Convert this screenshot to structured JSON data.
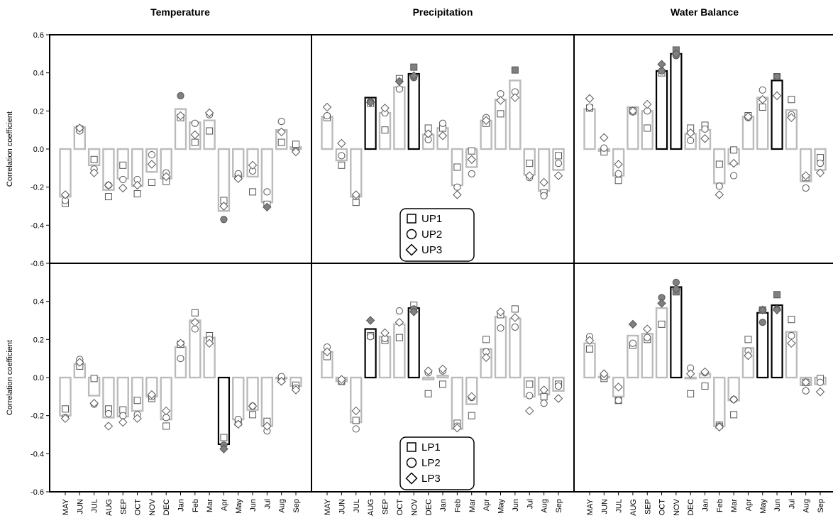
{
  "chart_data": {
    "type": "bar",
    "column_titles": [
      "Temperature",
      "Precipitation",
      "Water Balance"
    ],
    "ylabel": "Correlation coefficient",
    "ylim": [
      -0.6,
      0.6
    ],
    "yticks": [
      "0.6",
      "0.4",
      "0.2",
      "0.0",
      "-0.2",
      "-0.4",
      "-0.6"
    ],
    "categories": [
      "MAY",
      "JUN",
      "JUL",
      "AUG",
      "SEP",
      "OCT",
      "NOV",
      "DEC",
      "Jan",
      "Feb",
      "Mar",
      "Apr",
      "May",
      "Jun",
      "Jul",
      "Aug",
      "Sep"
    ],
    "legends": [
      [
        "UP1",
        "UP2",
        "UP3"
      ],
      [
        "LP1",
        "LP2",
        "LP3"
      ]
    ],
    "colors": {
      "bar_normal": "#bbbbbb",
      "bar_significant": "#000000",
      "marker_significant": "#808080"
    },
    "panels": [
      {
        "row": 0,
        "col": 0,
        "bars": [
          -0.25,
          0.115,
          -0.085,
          -0.215,
          -0.155,
          -0.195,
          -0.12,
          -0.155,
          0.21,
          0.14,
          0.15,
          -0.325,
          -0.145,
          -0.145,
          -0.28,
          0.1,
          0.01
        ],
        "s1": [
          -0.285,
          0.105,
          -0.055,
          -0.25,
          -0.085,
          -0.235,
          -0.175,
          -0.17,
          0.165,
          0.035,
          0.095,
          -0.27,
          -0.145,
          -0.225,
          -0.29,
          0.035,
          0.025
        ],
        "s2": [
          -0.27,
          0.095,
          -0.105,
          -0.19,
          -0.16,
          -0.16,
          -0.03,
          -0.125,
          0.28,
          0.135,
          0.18,
          -0.37,
          -0.13,
          -0.115,
          -0.225,
          0.145,
          -0.01
        ],
        "s3": [
          -0.24,
          0.11,
          -0.125,
          -0.19,
          -0.205,
          -0.19,
          -0.08,
          -0.145,
          0.175,
          0.075,
          0.19,
          -0.3,
          -0.155,
          -0.085,
          -0.305,
          0.09,
          -0.015
        ],
        "strong_bars": [],
        "filled_s2": [
          8,
          11
        ],
        "filled_s3": [
          14
        ]
      },
      {
        "row": 0,
        "col": 1,
        "bars": [
          0.17,
          -0.06,
          -0.25,
          0.27,
          0.19,
          0.325,
          0.395,
          0.075,
          0.11,
          -0.19,
          -0.095,
          0.15,
          0.26,
          0.36,
          -0.135,
          -0.22,
          -0.11
        ],
        "s1": [
          0.165,
          -0.085,
          -0.28,
          0.24,
          0.1,
          0.37,
          0.43,
          0.11,
          0.11,
          -0.095,
          -0.01,
          0.135,
          0.185,
          0.415,
          -0.075,
          -0.23,
          -0.035
        ],
        "s2": [
          0.175,
          -0.035,
          -0.25,
          0.25,
          0.19,
          0.315,
          0.375,
          0.05,
          0.135,
          -0.2,
          -0.13,
          0.165,
          0.29,
          0.3,
          -0.15,
          -0.245,
          -0.075
        ],
        "s3": [
          0.22,
          0.03,
          -0.24,
          0.245,
          0.215,
          0.355,
          0.385,
          0.08,
          0.07,
          -0.24,
          -0.055,
          0.15,
          0.255,
          0.27,
          -0.14,
          -0.175,
          -0.14
        ],
        "strong_bars": [
          3,
          6
        ],
        "filled_s1": [
          6,
          13
        ],
        "filled_s2": [
          3,
          6
        ],
        "filled_s3": [
          3,
          5,
          6
        ]
      },
      {
        "row": 0,
        "col": 2,
        "bars": [
          0.21,
          -0.01,
          -0.14,
          0.22,
          0.2,
          0.41,
          0.5,
          0.08,
          0.1,
          -0.18,
          -0.08,
          0.17,
          0.27,
          0.36,
          0.205,
          -0.17,
          -0.11
        ],
        "s1": [
          0.215,
          -0.015,
          -0.165,
          0.2,
          0.11,
          0.4,
          0.52,
          0.11,
          0.125,
          -0.08,
          -0.005,
          0.175,
          0.22,
          0.38,
          0.26,
          -0.15,
          -0.045
        ],
        "s2": [
          0.22,
          0.005,
          -0.13,
          0.195,
          0.2,
          0.41,
          0.49,
          0.045,
          0.105,
          -0.195,
          -0.14,
          0.165,
          0.31,
          0.38,
          0.18,
          -0.205,
          -0.075
        ],
        "s3": [
          0.265,
          0.06,
          -0.08,
          0.2,
          0.235,
          0.445,
          0.5,
          0.085,
          0.055,
          -0.24,
          -0.075,
          0.17,
          0.26,
          0.28,
          0.165,
          -0.14,
          -0.125
        ],
        "strong_bars": [
          5,
          6,
          13
        ],
        "filled_s1": [
          6,
          13
        ],
        "filled_s2": [
          5,
          6,
          13
        ],
        "filled_s3": [
          5,
          6
        ]
      },
      {
        "row": 1,
        "col": 0,
        "bars": [
          -0.2,
          0.07,
          -0.095,
          -0.21,
          -0.205,
          -0.175,
          -0.1,
          -0.22,
          0.16,
          0.3,
          0.21,
          -0.35,
          -0.22,
          -0.17,
          -0.255,
          -0.005,
          -0.045
        ],
        "s1": [
          -0.165,
          0.06,
          -0.005,
          -0.165,
          -0.17,
          -0.12,
          -0.11,
          -0.255,
          0.175,
          0.34,
          0.22,
          -0.315,
          -0.235,
          -0.195,
          -0.23,
          -0.01,
          -0.04
        ],
        "s2": [
          -0.21,
          0.095,
          -0.14,
          -0.19,
          -0.2,
          -0.195,
          -0.1,
          -0.21,
          0.1,
          0.255,
          0.2,
          -0.355,
          -0.22,
          -0.15,
          -0.28,
          0.005,
          -0.055
        ],
        "s3": [
          -0.215,
          0.08,
          -0.135,
          -0.255,
          -0.235,
          -0.215,
          -0.09,
          -0.175,
          0.18,
          0.29,
          0.18,
          -0.375,
          -0.245,
          -0.15,
          -0.255,
          -0.02,
          -0.065
        ],
        "strong_bars": [
          11
        ],
        "filled_s2": [
          11
        ],
        "filled_s3": [
          11
        ]
      },
      {
        "row": 1,
        "col": 1,
        "bars": [
          0.135,
          -0.02,
          -0.235,
          0.255,
          0.215,
          0.28,
          0.365,
          -0.01,
          0.01,
          -0.27,
          -0.14,
          0.15,
          0.32,
          0.31,
          -0.1,
          -0.09,
          -0.07
        ],
        "s1": [
          0.11,
          -0.02,
          -0.225,
          0.22,
          0.195,
          0.21,
          0.38,
          -0.085,
          -0.035,
          -0.24,
          -0.2,
          0.2,
          0.33,
          0.36,
          -0.035,
          -0.1,
          -0.035
        ],
        "s2": [
          0.16,
          -0.02,
          -0.27,
          0.215,
          0.205,
          0.35,
          0.36,
          0.025,
          0.035,
          -0.255,
          -0.105,
          0.135,
          0.26,
          0.265,
          -0.095,
          -0.135,
          -0.045
        ],
        "s3": [
          0.135,
          -0.01,
          -0.175,
          0.3,
          0.235,
          0.29,
          0.345,
          0.035,
          0.045,
          -0.265,
          -0.1,
          0.105,
          0.345,
          0.315,
          -0.175,
          -0.065,
          -0.11
        ],
        "strong_bars": [
          3,
          6
        ],
        "filled_s2": [
          6
        ],
        "filled_s3": [
          3,
          6
        ]
      },
      {
        "row": 1,
        "col": 2,
        "bars": [
          0.18,
          0.005,
          -0.1,
          0.22,
          0.23,
          0.365,
          0.475,
          -0.005,
          0.02,
          -0.255,
          -0.12,
          0.155,
          0.34,
          0.38,
          0.24,
          -0.04,
          -0.035
        ],
        "s1": [
          0.15,
          -0.005,
          -0.12,
          0.17,
          0.2,
          0.28,
          0.45,
          -0.085,
          -0.045,
          -0.25,
          -0.195,
          0.2,
          0.355,
          0.435,
          0.305,
          -0.025,
          -0.005
        ],
        "s2": [
          0.215,
          0.005,
          -0.12,
          0.18,
          0.21,
          0.42,
          0.5,
          0.05,
          0.025,
          -0.255,
          -0.115,
          0.14,
          0.29,
          0.36,
          0.22,
          -0.07,
          -0.025
        ],
        "s3": [
          0.195,
          0.02,
          -0.05,
          0.28,
          0.255,
          0.39,
          0.465,
          0.02,
          0.03,
          -0.26,
          -0.115,
          0.115,
          0.355,
          0.355,
          0.18,
          -0.025,
          -0.075
        ],
        "strong_bars": [
          6,
          12,
          13
        ],
        "filled_s1": [
          6,
          12,
          13
        ],
        "filled_s2": [
          5,
          6,
          12,
          13
        ],
        "filled_s3": [
          3,
          5,
          6,
          12,
          13
        ]
      }
    ]
  }
}
